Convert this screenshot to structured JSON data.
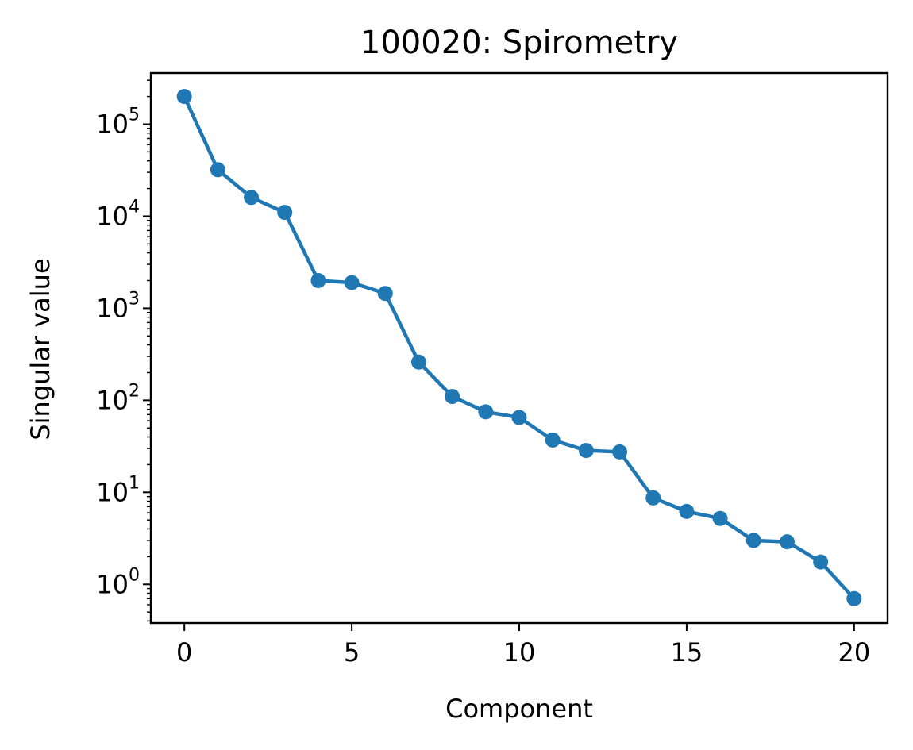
{
  "chart_data": {
    "type": "line",
    "title": "100020: Spirometry",
    "xlabel": "Component",
    "ylabel": "Singular value",
    "yscale": "log",
    "xlim": [
      -1,
      21
    ],
    "ylim": [
      0.38,
      360000
    ],
    "xticks": [
      0,
      5,
      10,
      15,
      20
    ],
    "yticks": [
      {
        "base": "10",
        "exp": "0",
        "value": 1
      },
      {
        "base": "10",
        "exp": "1",
        "value": 10
      },
      {
        "base": "10",
        "exp": "2",
        "value": 100
      },
      {
        "base": "10",
        "exp": "3",
        "value": 1000
      },
      {
        "base": "10",
        "exp": "4",
        "value": 10000
      },
      {
        "base": "10",
        "exp": "5",
        "value": 100000
      }
    ],
    "grid": false,
    "legend": "none",
    "color": "#1f77b4",
    "series": [
      {
        "x": [
          0,
          1,
          2,
          3,
          4,
          5,
          6,
          7,
          8,
          9,
          10,
          11,
          12,
          13,
          14,
          15,
          16,
          17,
          18,
          19,
          20
        ],
        "values": [
          200000,
          32000,
          16000,
          11000,
          2000,
          1900,
          1450,
          260,
          110,
          75,
          65,
          37,
          28.5,
          27.5,
          8.7,
          6.2,
          5.2,
          3.0,
          2.9,
          1.75,
          0.7
        ]
      }
    ]
  }
}
